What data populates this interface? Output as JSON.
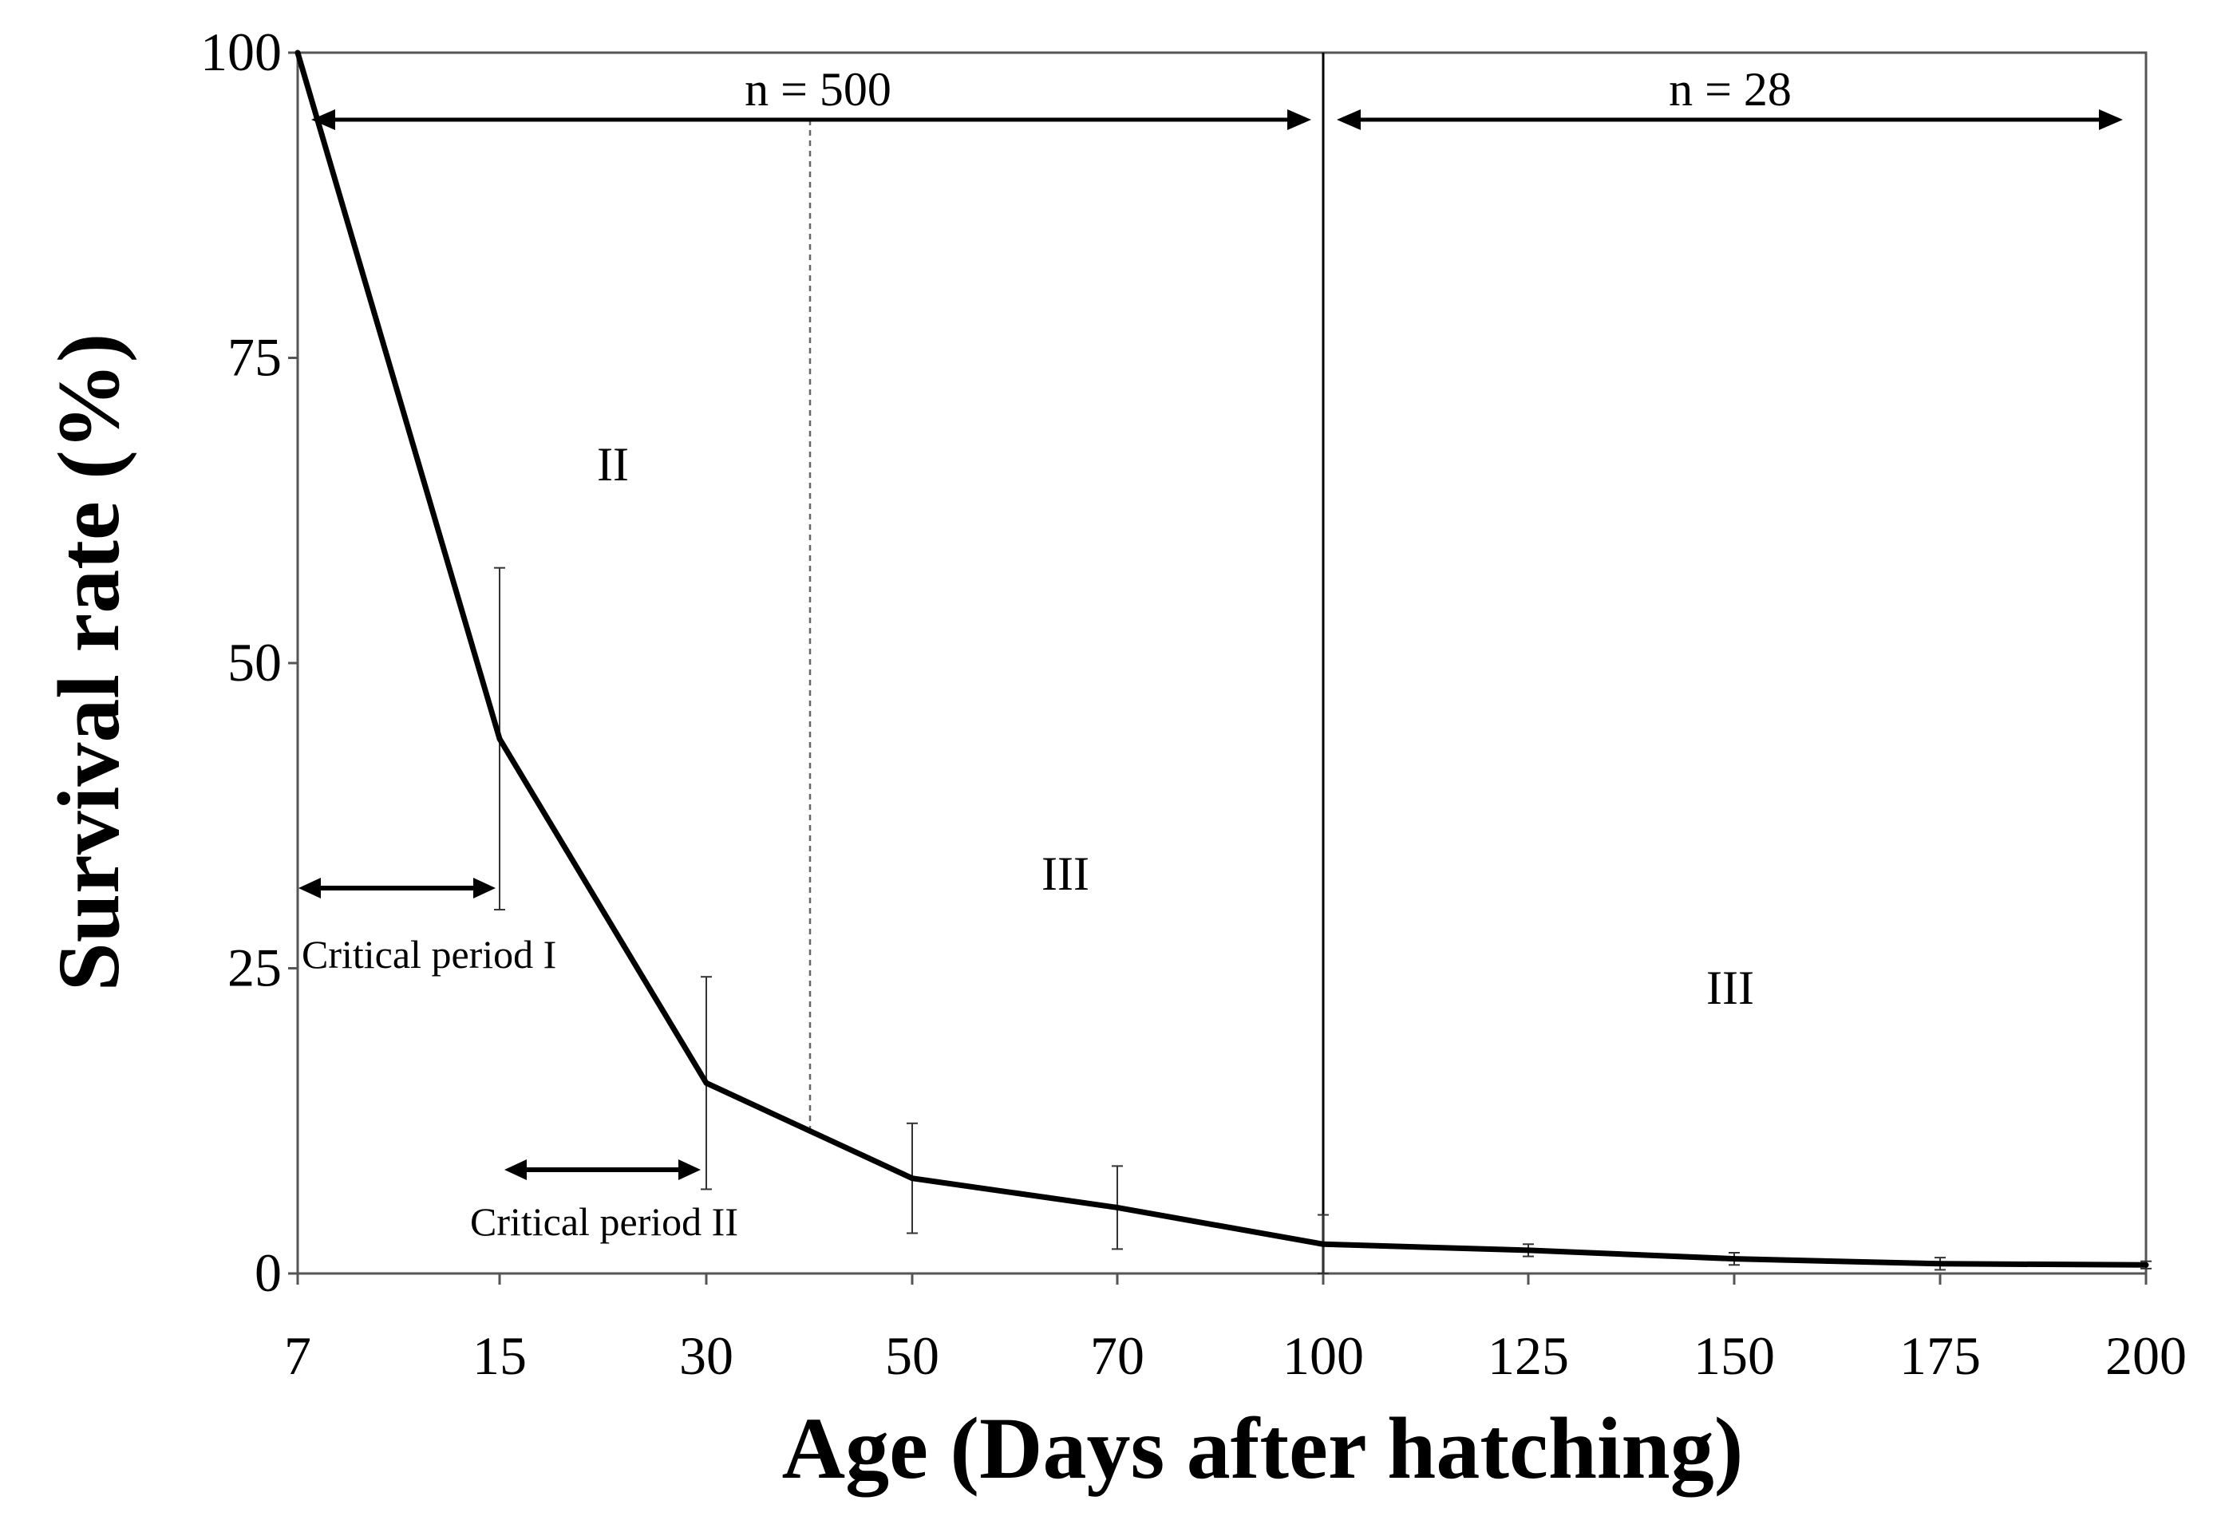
{
  "chart_data": {
    "type": "line",
    "title": "",
    "xlabel": "Age (Days after hatching)",
    "ylabel": "Survival rate (%)",
    "x_scale": "categorical",
    "categories": [
      "7",
      "15",
      "30",
      "50",
      "70",
      "100",
      "125",
      "150",
      "175",
      "200"
    ],
    "yticks": [
      "0",
      "25",
      "50",
      "75",
      "100"
    ],
    "ylim": [
      0,
      100
    ],
    "series": [
      {
        "name": "Survival rate",
        "values": [
          100,
          43.8,
          15.6,
          7.8,
          5.4,
          2.4,
          1.9,
          1.2,
          0.8,
          0.7
        ],
        "error": [
          0,
          14.0,
          8.7,
          4.5,
          3.4,
          2.4,
          0.5,
          0.5,
          0.5,
          0.3
        ]
      }
    ],
    "annotations": {
      "n_left": "n = 500",
      "n_right": "n = 28",
      "region_labels": [
        "II",
        "III",
        "III"
      ],
      "critical_period_1": "Critical period I",
      "critical_period_2": "Critical period II"
    }
  }
}
